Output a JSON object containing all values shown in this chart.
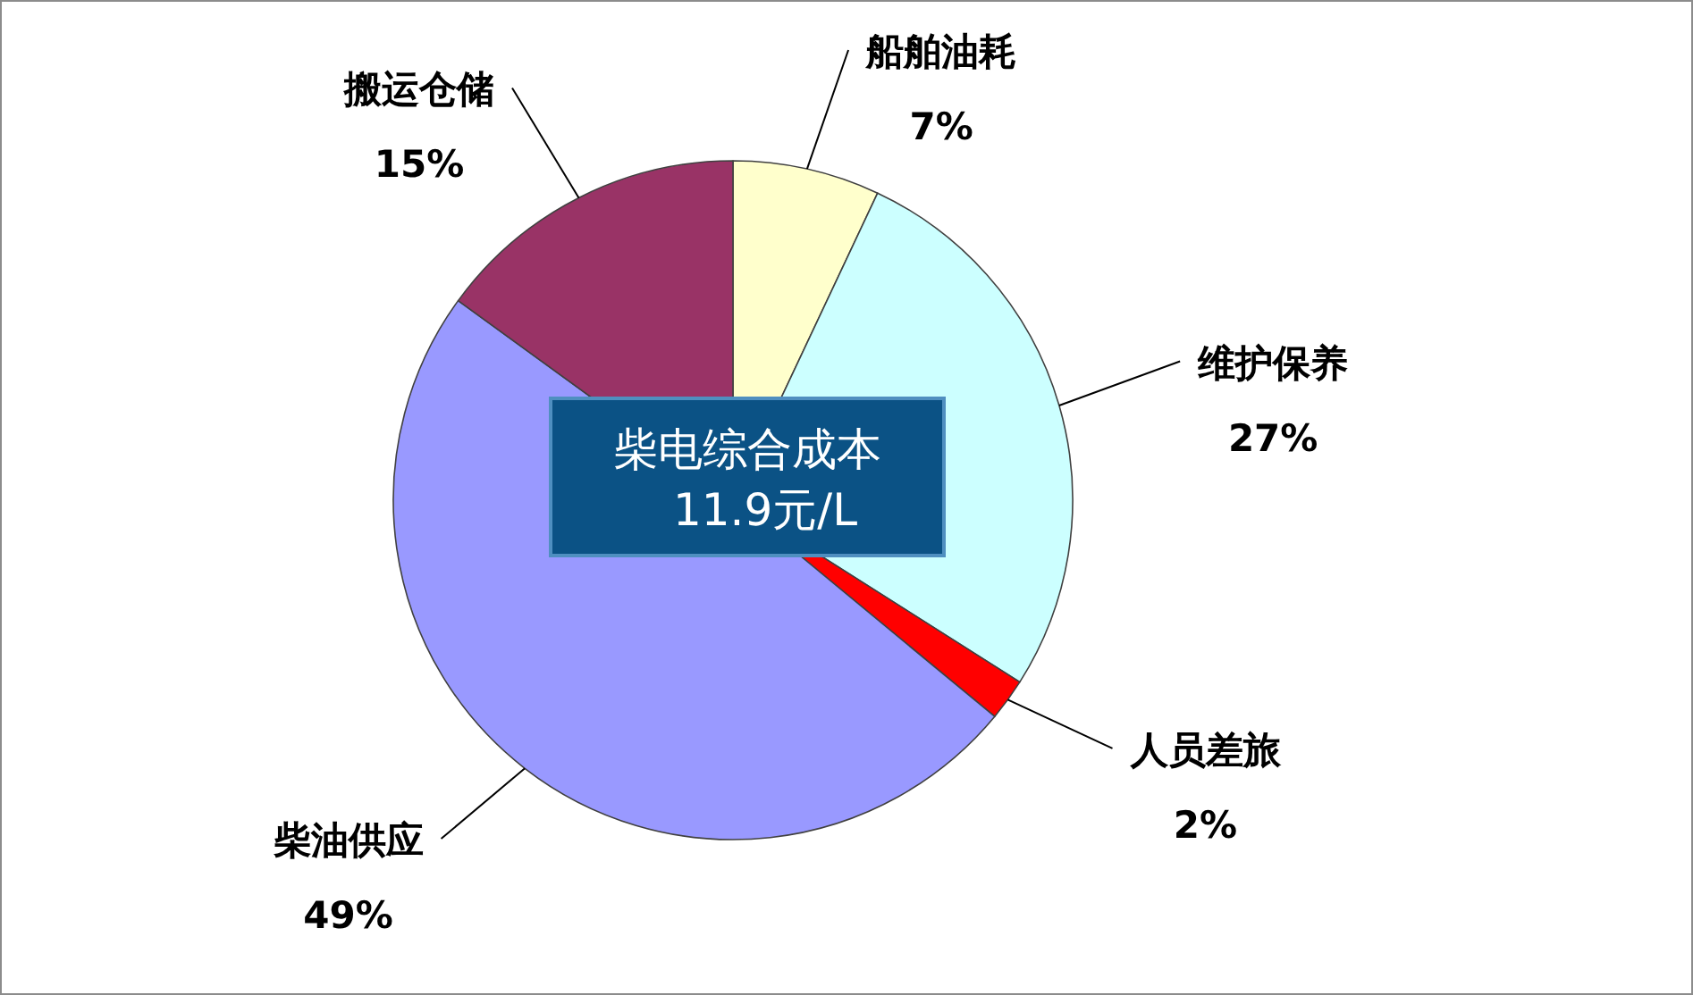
{
  "chart_data": {
    "type": "pie",
    "categories": [
      "船舶油耗",
      "维护保养",
      "人员差旅",
      "柴油供应",
      "搬运仓储"
    ],
    "values": [
      7,
      27,
      2,
      49,
      15
    ],
    "colors": [
      "#ffffcc",
      "#ccffff",
      "#ff0000",
      "#9999ff",
      "#993366"
    ],
    "value_labels": [
      "7%",
      "27%",
      "2%",
      "49%",
      "15%"
    ],
    "annotations": [
      "柴电综合成本 11.9元/L"
    ]
  }
}
